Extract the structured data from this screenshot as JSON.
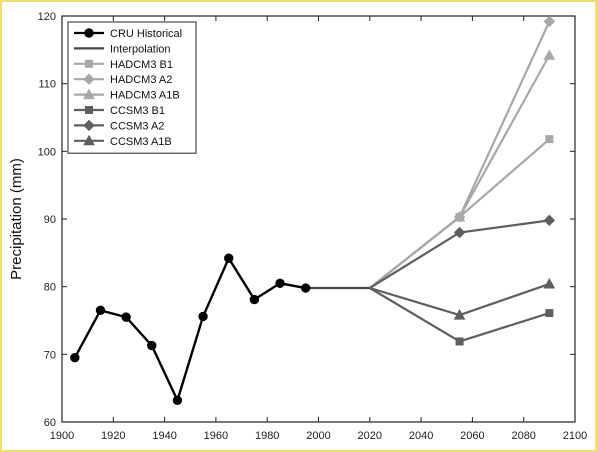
{
  "chart_data": {
    "type": "line",
    "title": "",
    "xlabel": "",
    "ylabel": "Precipitation (mm)",
    "xlim": [
      1900,
      2100
    ],
    "ylim": [
      60,
      120
    ],
    "xticks": [
      1900,
      1920,
      1940,
      1960,
      1980,
      2000,
      2020,
      2040,
      2060,
      2080,
      2100
    ],
    "yticks": [
      60,
      70,
      80,
      90,
      100,
      110,
      120
    ],
    "legend_position": "top-left",
    "grid": false,
    "series": [
      {
        "name": "CRU Historical",
        "color": "#000000",
        "marker": "circle",
        "x": [
          1905,
          1915,
          1925,
          1935,
          1945,
          1955,
          1965,
          1975,
          1985,
          1995
        ],
        "y": [
          69.5,
          76.5,
          75.5,
          71.3,
          63.2,
          75.6,
          84.2,
          78.1,
          80.5,
          79.8
        ]
      },
      {
        "name": "Interpolation",
        "color": "#444444",
        "marker": "none",
        "x": [
          1995,
          2020
        ],
        "y": [
          79.8,
          79.8
        ]
      },
      {
        "name": "HADCM3 B1",
        "color": "#a8a8a8",
        "marker": "square",
        "x": [
          2020,
          2055,
          2090
        ],
        "y": [
          79.8,
          90.3,
          101.8
        ]
      },
      {
        "name": "HADCM3 A2",
        "color": "#a8a8a8",
        "marker": "diamond",
        "x": [
          2020,
          2055,
          2090
        ],
        "y": [
          79.8,
          90.3,
          119.2
        ]
      },
      {
        "name": "HADCM3 A1B",
        "color": "#a8a8a8",
        "marker": "triangle",
        "x": [
          2020,
          2055,
          2090
        ],
        "y": [
          79.8,
          90.3,
          114.2
        ]
      },
      {
        "name": "CCSM3 B1",
        "color": "#5f5f5f",
        "marker": "square",
        "x": [
          2020,
          2055,
          2090
        ],
        "y": [
          79.8,
          71.9,
          76.1
        ]
      },
      {
        "name": "CCSM3 A2",
        "color": "#5f5f5f",
        "marker": "diamond",
        "x": [
          2020,
          2055,
          2090
        ],
        "y": [
          79.8,
          88.0,
          89.8
        ]
      },
      {
        "name": "CCSM3 A1B",
        "color": "#5f5f5f",
        "marker": "triangle",
        "x": [
          2020,
          2055,
          2090
        ],
        "y": [
          79.8,
          75.8,
          80.4
        ]
      }
    ]
  }
}
